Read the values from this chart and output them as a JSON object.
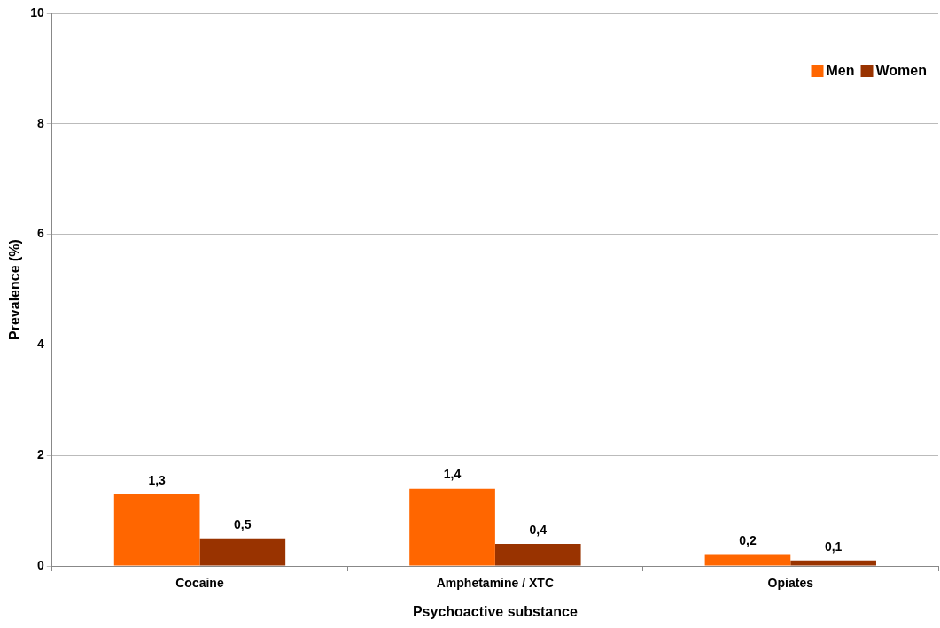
{
  "chart_data": {
    "type": "bar",
    "xlabel": "Psychoactive substance",
    "ylabel": "Prevalence (%)",
    "categories": [
      "Cocaine",
      "Amphetamine / XTC",
      "Opiates"
    ],
    "series": [
      {
        "name": "Men",
        "color": "#ff6600",
        "values": [
          1.3,
          1.4,
          0.2
        ],
        "value_labels": [
          "1,3",
          "1,4",
          "0,2"
        ]
      },
      {
        "name": "Women",
        "color": "#993300",
        "values": [
          0.5,
          0.4,
          0.1
        ],
        "value_labels": [
          "0,5",
          "0,4",
          "0,1"
        ]
      }
    ],
    "ylim": [
      0,
      10
    ],
    "yticks": [
      0,
      2,
      4,
      6,
      8,
      10
    ],
    "grid": "y",
    "legend": "top right"
  }
}
